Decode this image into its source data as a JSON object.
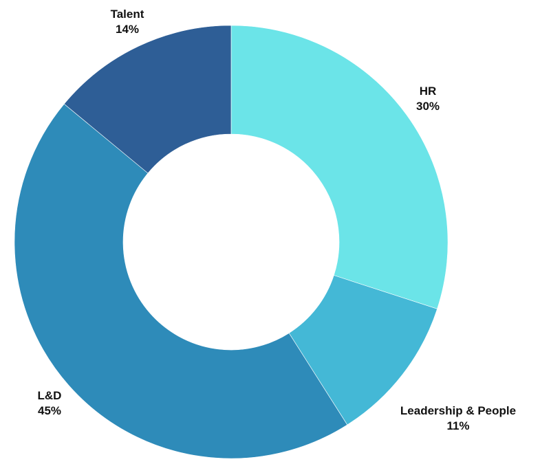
{
  "chart_data": {
    "type": "pie",
    "donut": true,
    "title": "",
    "slices": [
      {
        "label": "HR",
        "value": 30,
        "value_label": "30%",
        "color": "#6BE4E8"
      },
      {
        "label": "Leadership & People",
        "value": 11,
        "value_label": "11%",
        "color": "#44B8D6"
      },
      {
        "label": "L&D",
        "value": 45,
        "value_label": "45%",
        "color": "#2E8BB9"
      },
      {
        "label": "Talent",
        "value": 14,
        "value_label": "14%",
        "color": "#2E5E96"
      }
    ],
    "legend": "none",
    "start_angle": "12 o'clock",
    "direction": "clockwise"
  }
}
